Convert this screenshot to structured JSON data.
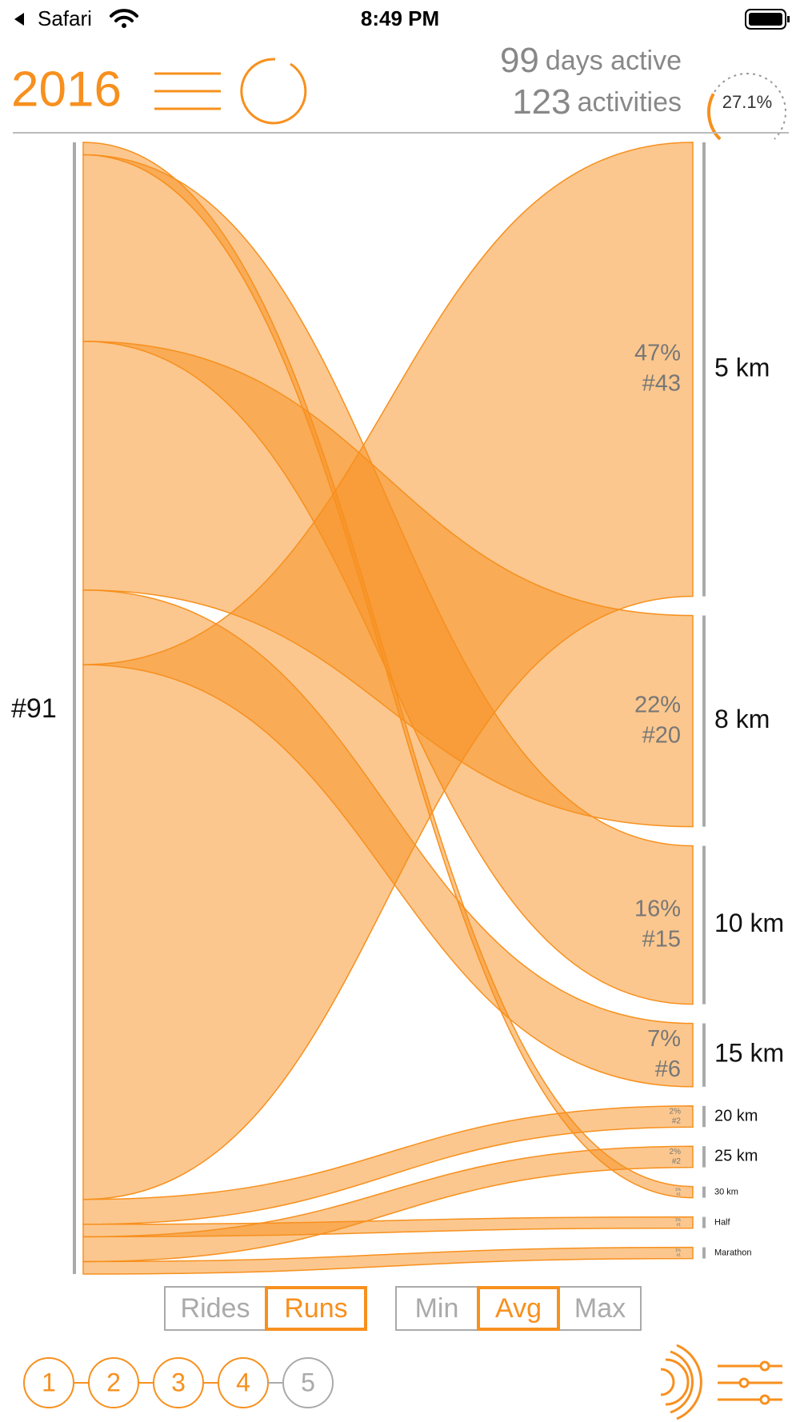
{
  "status_bar": {
    "back_app": "Safari",
    "time": "8:49 PM"
  },
  "header": {
    "year": "2016",
    "days_count": "99",
    "days_text": "days active",
    "activities_count": "123",
    "activities_text": "activities",
    "progress": {
      "value": 27.1,
      "label": "27.1%"
    }
  },
  "sankey": {
    "total": {
      "value": 91,
      "label": "#91"
    },
    "nodes": [
      {
        "name": "5 km",
        "share": {
          "value": 47,
          "label": "47%"
        },
        "count": {
          "value": 43,
          "label": "#43"
        }
      },
      {
        "name": "8 km",
        "share": {
          "value": 22,
          "label": "22%"
        },
        "count": {
          "value": 20,
          "label": "#20"
        }
      },
      {
        "name": "10 km",
        "share": {
          "value": 16,
          "label": "16%"
        },
        "count": {
          "value": 15,
          "label": "#15"
        }
      },
      {
        "name": "15 km",
        "share": {
          "value": 7,
          "label": "7%"
        },
        "count": {
          "value": 6,
          "label": "#6"
        }
      },
      {
        "name": "20 km",
        "share": {
          "value": 2,
          "label": "2%"
        },
        "count": {
          "value": 2,
          "label": "#2"
        }
      },
      {
        "name": "25 km",
        "share": {
          "value": 2,
          "label": "2%"
        },
        "count": {
          "value": 2,
          "label": "#2"
        }
      },
      {
        "name": "30 km",
        "share": {
          "value": 1,
          "label": "1%"
        },
        "count": {
          "value": 1,
          "label": "#1"
        }
      },
      {
        "name": "Half",
        "share": {
          "value": 1,
          "label": "1%"
        },
        "count": {
          "value": 1,
          "label": "#1"
        }
      },
      {
        "name": "Marathon",
        "share": {
          "value": 1,
          "label": "1%"
        },
        "count": {
          "value": 1,
          "label": "#1"
        }
      }
    ]
  },
  "sport_toggle": [
    {
      "label": "Rides",
      "selected": false
    },
    {
      "label": "Runs",
      "selected": true
    }
  ],
  "stat_toggle": [
    {
      "label": "Min",
      "selected": false
    },
    {
      "label": "Avg",
      "selected": true
    },
    {
      "label": "Max",
      "selected": false
    }
  ],
  "pages": [
    {
      "label": "1",
      "active": true
    },
    {
      "label": "2",
      "active": true
    },
    {
      "label": "3",
      "active": true
    },
    {
      "label": "4",
      "active": true
    },
    {
      "label": "5",
      "active": false
    }
  ]
}
